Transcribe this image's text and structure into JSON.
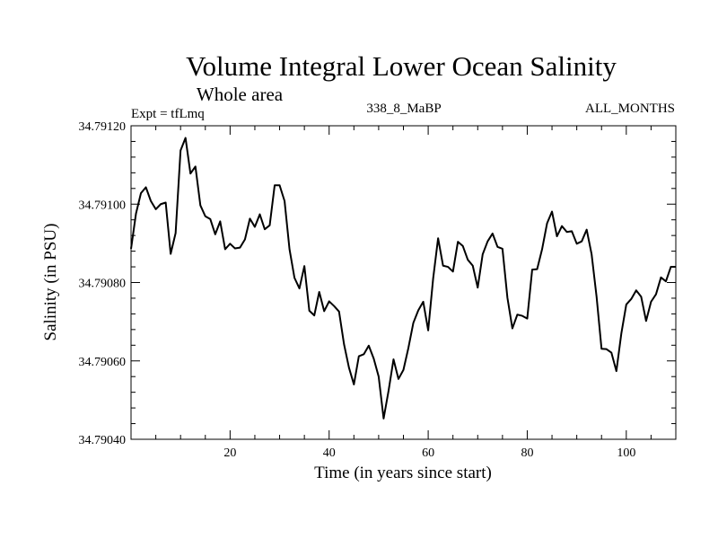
{
  "chart_data": {
    "type": "line",
    "title": "Volume Integral Lower Ocean Salinity",
    "subtitle": "Whole area",
    "header_left": "Expt = tfLmq",
    "header_center": "338_8_MaBP",
    "header_right": "ALL_MONTHS",
    "xlabel": "Time (in years since start)",
    "ylabel": "Salinity (in PSU)",
    "xlim": [
      0,
      110
    ],
    "ylim": [
      34.7904,
      34.7912
    ],
    "xticks": [
      20,
      40,
      60,
      80,
      100
    ],
    "xtick_labels": [
      "20",
      "40",
      "60",
      "80",
      "100"
    ],
    "yticks": [
      34.7904,
      34.7906,
      34.7908,
      34.791,
      34.7912
    ],
    "ytick_labels": [
      "34.79040",
      "34.79060",
      "34.79080",
      "34.79100",
      "34.79120"
    ],
    "grid": false,
    "series": [
      {
        "name": "Salinity",
        "x": [
          0,
          1,
          2,
          3,
          4,
          5,
          6,
          7,
          8,
          9,
          10,
          11,
          12,
          13,
          14,
          15,
          16,
          17,
          18,
          19,
          20,
          21,
          22,
          23,
          24,
          25,
          26,
          27,
          28,
          29,
          30,
          31,
          32,
          33,
          34,
          35,
          36,
          37,
          38,
          39,
          40,
          41,
          42,
          43,
          44,
          45,
          46,
          47,
          48,
          49,
          50,
          51,
          52,
          53,
          54,
          55,
          56,
          57,
          58,
          59,
          60,
          61,
          62,
          63,
          64,
          65,
          66,
          67,
          68,
          69,
          70,
          71,
          72,
          73,
          74,
          75,
          76,
          77,
          78,
          79,
          80,
          81,
          82,
          83,
          84,
          85,
          86,
          87,
          88,
          89,
          90,
          91,
          92,
          93,
          94,
          95,
          96,
          97,
          98,
          99,
          100,
          101,
          102,
          103,
          104,
          105,
          106,
          107,
          108,
          109,
          110
        ],
        "y": [
          34.790886,
          34.790976,
          34.791028,
          34.791043,
          34.791008,
          34.790987,
          34.791,
          34.791004,
          34.790873,
          34.790926,
          34.791137,
          34.791169,
          34.791078,
          34.791096,
          34.790997,
          34.790969,
          34.790962,
          34.790923,
          34.790956,
          34.790885,
          34.790899,
          34.790887,
          34.790889,
          34.79091,
          34.790963,
          34.790942,
          34.790974,
          34.790936,
          34.790946,
          34.791048,
          34.791048,
          34.791008,
          34.790885,
          34.790812,
          34.790785,
          34.790842,
          34.790728,
          34.790716,
          34.790776,
          34.790727,
          34.790752,
          34.79074,
          34.790726,
          34.790643,
          34.790583,
          34.79054,
          34.790612,
          34.790617,
          34.790639,
          34.790606,
          34.79056,
          34.790453,
          34.790524,
          34.790604,
          34.790554,
          34.790577,
          34.790633,
          34.790697,
          34.790729,
          34.790751,
          34.790678,
          34.79081,
          34.790913,
          34.790843,
          34.79084,
          34.790828,
          34.790904,
          34.790893,
          34.790858,
          34.790843,
          34.790787,
          34.790872,
          34.790905,
          34.790925,
          34.790891,
          34.790886,
          34.790761,
          34.790683,
          34.790718,
          34.790715,
          34.790708,
          34.790833,
          34.790834,
          34.790885,
          34.790951,
          34.790981,
          34.790918,
          34.790944,
          34.790929,
          34.790931,
          34.790899,
          34.790905,
          34.790935,
          34.790872,
          34.790764,
          34.790631,
          34.79063,
          34.790621,
          34.790574,
          34.79067,
          34.790744,
          34.790758,
          34.79078,
          34.790764,
          34.790702,
          34.790751,
          34.79077,
          34.790813,
          34.790803,
          34.79084,
          34.79084
        ]
      }
    ]
  }
}
